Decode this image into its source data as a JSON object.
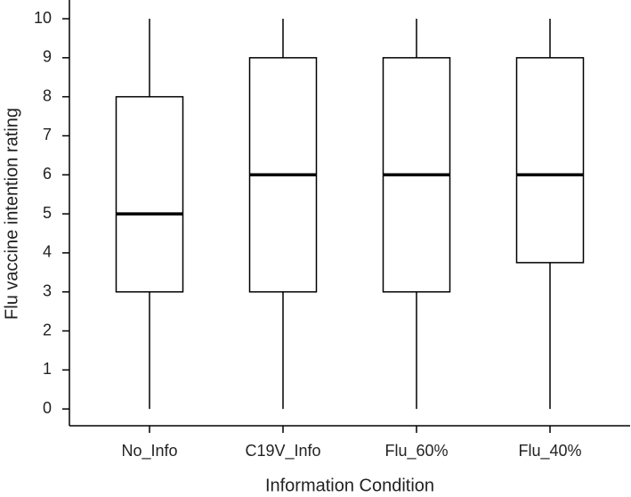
{
  "chart_data": {
    "type": "box",
    "x_label": "Information Condition",
    "y_label": "Flu vaccine intention rating",
    "categories": [
      "No_Info",
      "C19V_Info",
      "Flu_60%",
      "Flu_40%"
    ],
    "min": [
      0,
      0,
      0,
      0
    ],
    "q1": [
      3,
      3,
      3,
      3.75
    ],
    "median": [
      5,
      6,
      6,
      6
    ],
    "q3": [
      8,
      9,
      9,
      9
    ],
    "max": [
      10,
      10,
      10,
      10
    ],
    "color": "#000000",
    "ylim": [
      -0.43,
      10.48
    ],
    "yticks": [
      0,
      1,
      2,
      3,
      4,
      5,
      6,
      7,
      8,
      9,
      10
    ]
  }
}
